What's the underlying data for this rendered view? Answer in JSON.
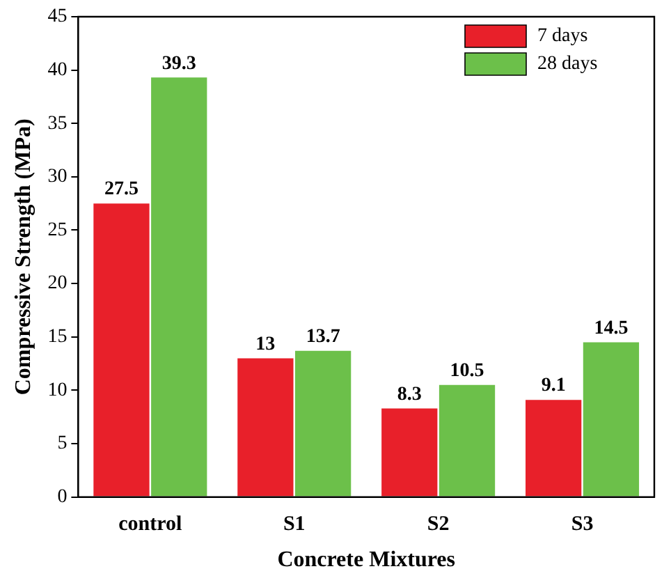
{
  "chart_data": {
    "type": "bar",
    "xlabel": "Concrete Mixtures",
    "ylabel": "Compressive Strength (MPa)",
    "categories": [
      "control",
      "S1",
      "S2",
      "S3"
    ],
    "series": [
      {
        "name": "7 days",
        "color": "#e8202a",
        "values": [
          27.5,
          13,
          8.3,
          9.1
        ]
      },
      {
        "name": "28 days",
        "color": "#6cc04a",
        "values": [
          39.3,
          13.7,
          10.5,
          14.5
        ]
      }
    ],
    "ylim": [
      0,
      45
    ],
    "yticks": [
      0,
      5,
      10,
      15,
      20,
      25,
      30,
      35,
      40,
      45
    ],
    "data_labels": true,
    "legend": "top right",
    "grid": false
  }
}
